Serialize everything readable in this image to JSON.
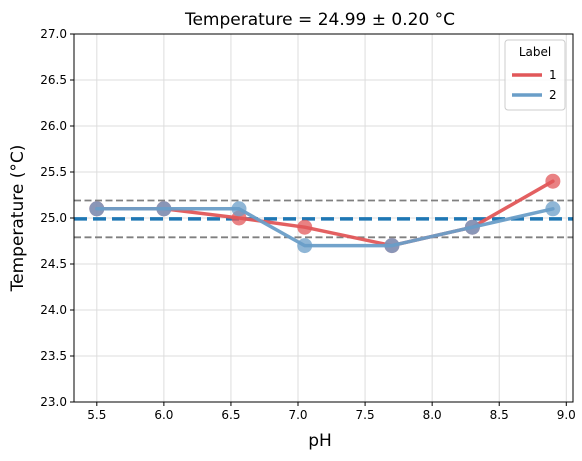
{
  "chart_data": {
    "type": "line",
    "title": "Temperature = 24.99 ± 0.20 °C",
    "xlabel": "pH",
    "ylabel": "Temperature (°C)",
    "xlim": [
      5.33,
      9.05
    ],
    "ylim": [
      23.0,
      27.0
    ],
    "xticks": [
      "5.5",
      "6.0",
      "6.5",
      "7.0",
      "7.5",
      "8.0",
      "8.5",
      "9.0"
    ],
    "xtick_values": [
      5.5,
      6.0,
      6.5,
      7.0,
      7.5,
      8.0,
      8.5,
      9.0
    ],
    "yticks": [
      "23.0",
      "23.5",
      "24.0",
      "24.5",
      "25.0",
      "25.5",
      "26.0",
      "26.5",
      "27.0"
    ],
    "ytick_values": [
      23.0,
      23.5,
      24.0,
      24.5,
      25.0,
      25.5,
      26.0,
      26.5,
      27.0
    ],
    "grid": true,
    "legend": {
      "title": "Label",
      "placement": "top-right"
    },
    "series": [
      {
        "name": "1",
        "color": "#e15759",
        "x": [
          5.5,
          6.0,
          6.56,
          7.05,
          7.7,
          8.3,
          8.9
        ],
        "y": [
          25.1,
          25.1,
          25.0,
          24.9,
          24.7,
          24.9,
          25.4
        ]
      },
      {
        "name": "2",
        "color": "#6a9ec8",
        "x": [
          5.5,
          6.0,
          6.56,
          7.05,
          7.7,
          8.3,
          8.9
        ],
        "y": [
          25.1,
          25.1,
          25.1,
          24.7,
          24.7,
          24.9,
          25.1
        ]
      }
    ],
    "reference_lines": [
      {
        "y": 24.99,
        "style": "mean",
        "color": "#1f77b4"
      },
      {
        "y": 25.19,
        "style": "upper",
        "color": "#808080"
      },
      {
        "y": 24.79,
        "style": "lower",
        "color": "#808080"
      }
    ]
  }
}
